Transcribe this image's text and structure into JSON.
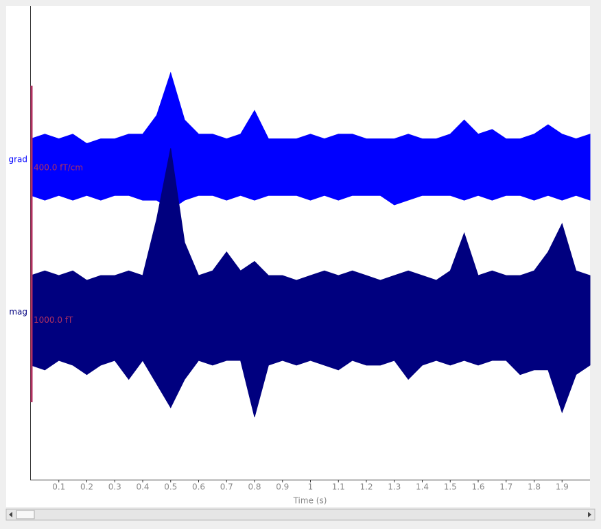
{
  "chart_data": {
    "type": "line",
    "xlabel": "Time (s)",
    "xlim": [
      0,
      2
    ],
    "xticks": [
      0.1,
      0.2,
      0.3,
      0.4,
      0.5,
      0.6,
      0.7,
      0.8,
      0.9,
      1.0,
      1.1,
      1.2,
      1.3,
      1.4,
      1.5,
      1.6,
      1.7,
      1.8,
      1.9
    ],
    "ylim": [
      0,
      100
    ],
    "x": [
      0,
      0.05,
      0.1,
      0.15,
      0.2,
      0.25,
      0.3,
      0.35,
      0.4,
      0.45,
      0.5,
      0.55,
      0.6,
      0.65,
      0.7,
      0.75,
      0.8,
      0.85,
      0.9,
      0.95,
      1.0,
      1.05,
      1.1,
      1.15,
      1.2,
      1.25,
      1.3,
      1.35,
      1.4,
      1.45,
      1.5,
      1.55,
      1.6,
      1.65,
      1.7,
      1.75,
      1.8,
      1.85,
      1.9,
      1.95,
      2.0
    ],
    "series": [
      {
        "name": "grad",
        "color": "#0000ff",
        "scale_label": "400.0 fT/cm",
        "values": [
          72,
          73,
          72,
          73,
          71,
          72,
          72,
          73,
          73,
          77,
          86,
          76,
          73,
          73,
          72,
          73,
          78,
          72,
          72,
          72,
          73,
          72,
          73,
          73,
          72,
          72,
          72,
          73,
          72,
          72,
          73,
          76,
          73,
          74,
          72,
          72,
          73,
          75,
          73,
          72,
          73
        ],
        "lower": [
          60,
          59,
          60,
          59,
          60,
          59,
          60,
          60,
          59,
          59,
          57,
          59,
          60,
          60,
          59,
          60,
          59,
          60,
          60,
          60,
          59,
          60,
          59,
          60,
          60,
          60,
          58,
          59,
          60,
          60,
          60,
          59,
          60,
          59,
          60,
          60,
          59,
          60,
          59,
          60,
          59
        ]
      },
      {
        "name": "mag",
        "color": "#00007f",
        "scale_label": "1000.0 fT",
        "values": [
          43,
          44,
          43,
          44,
          42,
          43,
          43,
          44,
          43,
          55,
          70,
          50,
          43,
          44,
          48,
          44,
          46,
          43,
          43,
          42,
          43,
          44,
          43,
          44,
          43,
          42,
          43,
          44,
          43,
          42,
          44,
          52,
          43,
          44,
          43,
          43,
          44,
          48,
          54,
          44,
          43
        ],
        "lower": [
          24,
          23,
          25,
          24,
          22,
          24,
          25,
          21,
          25,
          20,
          15,
          21,
          25,
          24,
          25,
          25,
          13,
          24,
          25,
          24,
          25,
          24,
          23,
          25,
          24,
          24,
          25,
          21,
          24,
          25,
          24,
          25,
          24,
          25,
          25,
          22,
          23,
          23,
          14,
          22,
          24
        ]
      }
    ]
  }
}
